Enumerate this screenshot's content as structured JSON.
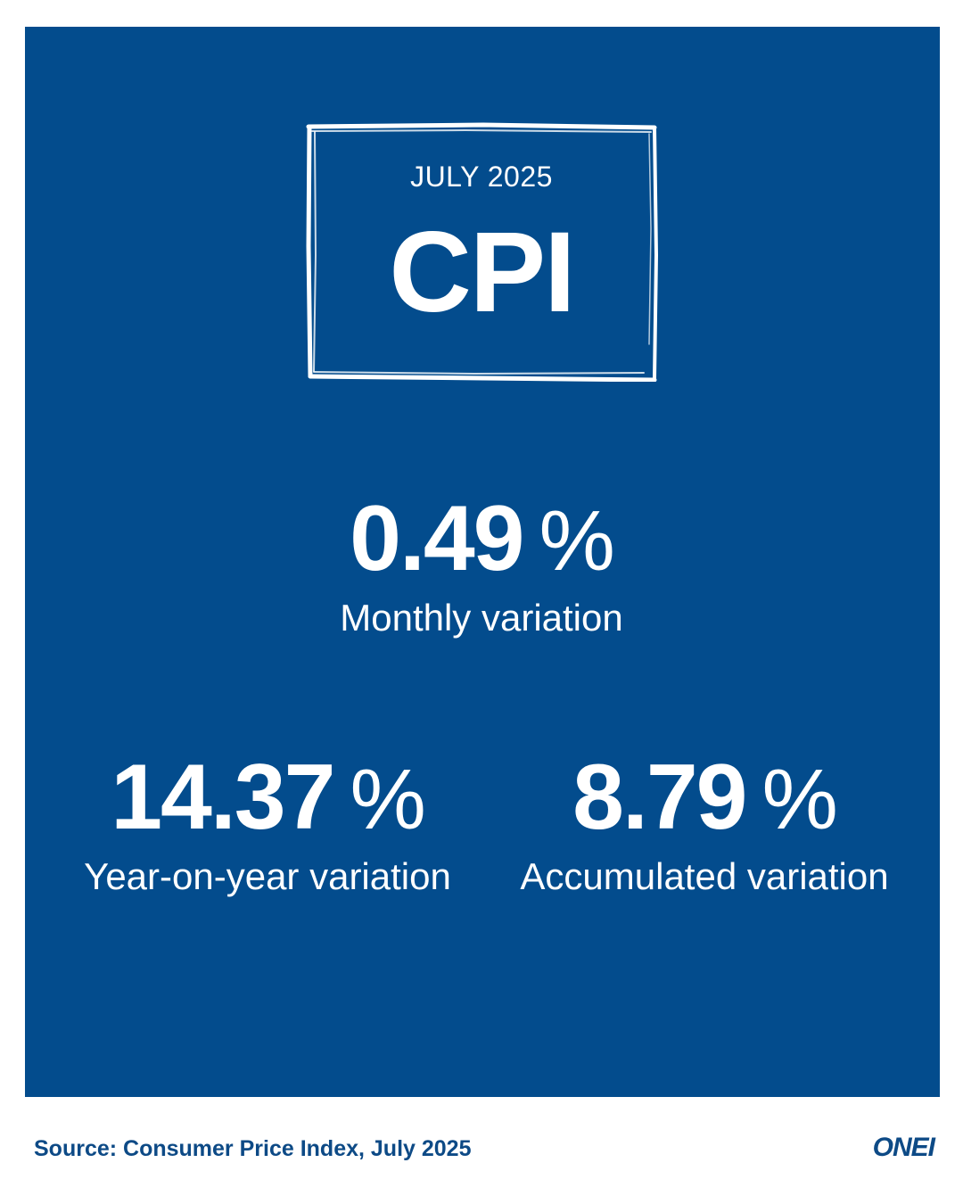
{
  "header": {
    "period": "JULY 2025",
    "title": "CPI"
  },
  "stats": {
    "monthly": {
      "value": "0.49",
      "unit": "%",
      "label": "Monthly variation"
    },
    "year_on_year": {
      "value": "14.37",
      "unit": "%",
      "label": "Year-on-year variation"
    },
    "accumulated": {
      "value": "8.79",
      "unit": "%",
      "label": "Accumulated variation"
    }
  },
  "footer": {
    "source": "Source: Consumer Price Index, July 2025",
    "logo_text": "ONEI"
  },
  "colors": {
    "panel_background": "#034c8d",
    "text_on_panel": "#ffffff",
    "footer_text": "#0d4a86"
  }
}
